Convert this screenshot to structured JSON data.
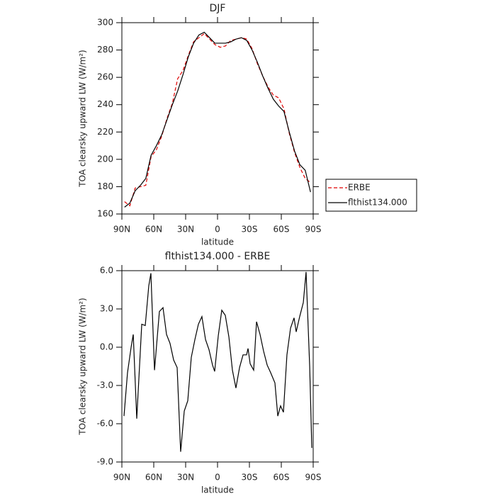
{
  "chart_data": [
    {
      "type": "line",
      "title": "DJF",
      "xlabel": "latitude",
      "ylabel": "TOA clearsky upward LW (W/m²)",
      "x": [
        87.5,
        82.5,
        77.5,
        72.5,
        67.5,
        62.5,
        57.5,
        52.5,
        47.5,
        42.5,
        37.5,
        32.5,
        27.5,
        22.5,
        17.5,
        12.5,
        7.5,
        2.5,
        -2.5,
        -7.5,
        -12.5,
        -17.5,
        -22.5,
        -27.5,
        -32.5,
        -37.5,
        -42.5,
        -47.5,
        -52.5,
        -57.5,
        -62.5,
        -67.5,
        -72.5,
        -77.5,
        -82.5,
        -87.5
      ],
      "series": [
        {
          "name": "ERBE",
          "color": "#e00000",
          "style": "dashed",
          "values": [
            169,
            166,
            179,
            180,
            181,
            202,
            207,
            217,
            230,
            241,
            259,
            265,
            276,
            286,
            289,
            292,
            288,
            284,
            282,
            283,
            287,
            288,
            289,
            288,
            281,
            270,
            261,
            253,
            247,
            245,
            237,
            219,
            205,
            194,
            186,
            183
          ]
        },
        {
          "name": "flthist134.000",
          "color": "#000000",
          "style": "solid",
          "values": [
            165,
            168,
            177,
            181,
            186,
            203,
            210,
            218,
            229,
            240,
            250,
            262,
            275,
            285,
            291,
            293,
            289,
            285,
            285,
            285,
            286,
            288,
            289,
            287,
            280,
            271,
            261,
            252,
            244,
            239,
            235,
            220,
            206,
            196,
            192,
            176
          ]
        }
      ],
      "xlim": [
        90,
        -90
      ],
      "xticks": [
        {
          "value": 90,
          "label": "90N"
        },
        {
          "value": 60,
          "label": "60N"
        },
        {
          "value": 30,
          "label": "30N"
        },
        0,
        {
          "value": -30,
          "label": "30S"
        },
        {
          "value": -60,
          "label": "60S"
        },
        {
          "value": -90,
          "label": "90S"
        }
      ],
      "ylim": [
        160,
        300
      ],
      "yticks": [
        160,
        180,
        200,
        220,
        240,
        260,
        280,
        300
      ],
      "legend": "outside-right"
    },
    {
      "type": "line",
      "title": "flthist134.000 - ERBE",
      "xlabel": "latitude",
      "ylabel": "TOA clearsky upward LW (W/m²)",
      "x": [
        88.0,
        84.7,
        81.3,
        79.3,
        76.0,
        71.3,
        68.0,
        64.7,
        62.7,
        59.3,
        54.7,
        51.3,
        48.0,
        44.7,
        41.3,
        38.0,
        34.7,
        31.3,
        28.0,
        24.7,
        21.3,
        18.0,
        14.7,
        11.3,
        8.0,
        4.7,
        2.7,
        -0.7,
        -4.0,
        -7.3,
        -10.7,
        -14.0,
        -17.3,
        -20.7,
        -24.0,
        -27.3,
        -28.7,
        -30.7,
        -34.0,
        -36.7,
        -40.0,
        -43.3,
        -46.7,
        -50.0,
        -54.0,
        -56.7,
        -59.3,
        -62.0,
        -65.3,
        -68.7,
        -72.0,
        -74.0,
        -77.3,
        -80.7,
        -83.3,
        -86.7,
        -88.7
      ],
      "series": [
        {
          "color": "#000000",
          "style": "solid",
          "values": [
            -5.4,
            -2,
            0,
            1,
            -5.6,
            1.8,
            1.7,
            4.8,
            5.8,
            -1.8,
            2.8,
            3.1,
            1,
            0.3,
            -1,
            -1.6,
            -8.2,
            -5,
            -4.2,
            -0.8,
            0.6,
            1.8,
            2.4,
            0.6,
            -0.2,
            -1.4,
            -1.9,
            0.9,
            2.9,
            2.5,
            0.8,
            -1.8,
            -3.2,
            -1.6,
            -0.6,
            -0.6,
            -0.1,
            -1.3,
            -1.8,
            2,
            1,
            -0.3,
            -1.4,
            -2,
            -2.8,
            -5.4,
            -4.6,
            -5.1,
            -0.6,
            1.5,
            2.3,
            1.2,
            2.4,
            3.5,
            5.9,
            -1.5,
            -7.9
          ]
        }
      ],
      "xlim": [
        90,
        -90
      ],
      "xticks": [
        {
          "value": 90,
          "label": "90N"
        },
        {
          "value": 60,
          "label": "60N"
        },
        {
          "value": 30,
          "label": "30N"
        },
        0,
        {
          "value": -30,
          "label": "30S"
        },
        {
          "value": -60,
          "label": "60S"
        },
        {
          "value": -90,
          "label": "90S"
        }
      ],
      "ylim": [
        -9,
        6
      ],
      "yticks": [
        {
          "value": -9,
          "label": "-9.0"
        },
        {
          "value": -6,
          "label": "-6.0"
        },
        {
          "value": -3,
          "label": "-3.0"
        },
        {
          "value": 0,
          "label": "0.0"
        },
        {
          "value": 3,
          "label": "3.0"
        },
        {
          "value": 6,
          "label": "6.0"
        }
      ]
    }
  ]
}
